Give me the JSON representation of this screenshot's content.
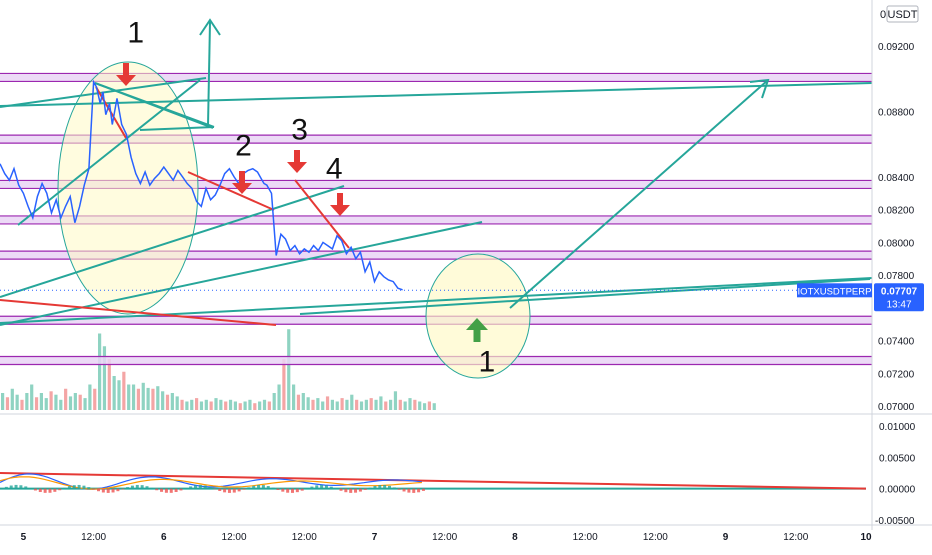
{
  "chart_data": {
    "type": "line",
    "symbol_badge": "IOTXUSDTPERP",
    "currency_label": "USDT",
    "axis_prefix": "0",
    "last_price": "0.07707",
    "countdown": "13:47",
    "price_ticks": [
      "0.09200",
      "0.08800",
      "0.08400",
      "0.08200",
      "0.08000",
      "0.07800",
      "0.07400",
      "0.07200",
      "0.07000"
    ],
    "price_ticks_values": [
      0.092,
      0.088,
      0.084,
      0.082,
      0.08,
      0.078,
      0.074,
      0.072,
      0.07
    ],
    "osc_ticks": [
      "0.01000",
      "0.00500",
      "0.00000",
      "-0.00500"
    ],
    "osc_ticks_values": [
      0.01,
      0.005,
      0.0,
      -0.005
    ],
    "time_ticks": [
      "5",
      "12:00",
      "6",
      "12:00",
      "12:00",
      "7",
      "12:00",
      "8",
      "12:00",
      "12:00",
      "9",
      "12:00",
      "10"
    ],
    "time_ticks_t": [
      0.25,
      1.0,
      1.75,
      2.5,
      3.25,
      4.0,
      4.75,
      5.5,
      6.25,
      7.0,
      7.75,
      8.5,
      9.25
    ],
    "levels": [
      {
        "label": "0.09008",
        "value": 0.09008
      },
      {
        "label": "0.08631",
        "value": 0.08631
      },
      {
        "label": "0.08354",
        "value": 0.08354
      },
      {
        "label": "0.08137",
        "value": 0.08137
      },
      {
        "label": "0.07922",
        "value": 0.07922
      },
      {
        "label": "0.07524",
        "value": 0.07524
      },
      {
        "label": "0.07278",
        "value": 0.07278
      }
    ],
    "price_series": {
      "t": [
        0.0,
        0.05,
        0.1,
        0.15,
        0.2,
        0.25,
        0.3,
        0.35,
        0.4,
        0.45,
        0.5,
        0.55,
        0.6,
        0.65,
        0.7,
        0.75,
        0.8,
        0.85,
        0.9,
        0.95,
        1.0,
        1.03,
        1.07,
        1.1,
        1.13,
        1.17,
        1.2,
        1.25,
        1.3,
        1.35,
        1.4,
        1.45,
        1.5,
        1.55,
        1.6,
        1.65,
        1.7,
        1.75,
        1.8,
        1.85,
        1.9,
        1.95,
        2.0,
        2.05,
        2.1,
        2.15,
        2.2,
        2.25,
        2.3,
        2.35,
        2.4,
        2.45,
        2.5,
        2.55,
        2.6,
        2.65,
        2.7,
        2.75,
        2.8,
        2.82,
        2.85,
        2.9,
        2.95,
        3.0,
        3.05,
        3.1,
        3.15,
        3.2,
        3.25,
        3.3,
        3.35,
        3.4,
        3.45,
        3.5,
        3.55,
        3.6,
        3.65,
        3.7,
        3.75,
        3.8,
        3.85,
        3.9,
        3.95,
        4.0,
        4.05,
        4.1,
        4.15,
        4.2,
        4.25,
        4.3
      ],
      "v": [
        0.0848,
        0.0842,
        0.0838,
        0.0845,
        0.0835,
        0.083,
        0.0822,
        0.0815,
        0.0828,
        0.0836,
        0.083,
        0.0818,
        0.0826,
        0.0815,
        0.0822,
        0.0828,
        0.0812,
        0.0822,
        0.0835,
        0.0845,
        0.0898,
        0.0895,
        0.0885,
        0.0892,
        0.0878,
        0.0885,
        0.0872,
        0.0888,
        0.0872,
        0.0866,
        0.0852,
        0.0842,
        0.0836,
        0.0843,
        0.0835,
        0.0839,
        0.0842,
        0.0846,
        0.0842,
        0.0838,
        0.0844,
        0.084,
        0.0836,
        0.0833,
        0.0825,
        0.0822,
        0.0833,
        0.0826,
        0.0829,
        0.0835,
        0.0842,
        0.0845,
        0.084,
        0.0836,
        0.0842,
        0.0844,
        0.0845,
        0.0843,
        0.0838,
        0.0836,
        0.0835,
        0.083,
        0.0792,
        0.0805,
        0.0802,
        0.0795,
        0.0798,
        0.0793,
        0.0796,
        0.0794,
        0.0798,
        0.0795,
        0.08,
        0.0798,
        0.0796,
        0.0804,
        0.0801,
        0.0793,
        0.0797,
        0.079,
        0.0794,
        0.0782,
        0.0788,
        0.0776,
        0.0782,
        0.0779,
        0.0777,
        0.0776,
        0.0772,
        0.0771
      ]
    },
    "volume": [
      0.2,
      0.15,
      0.25,
      0.18,
      0.12,
      0.2,
      0.3,
      0.15,
      0.2,
      0.14,
      0.22,
      0.18,
      0.12,
      0.25,
      0.16,
      0.2,
      0.18,
      0.14,
      0.3,
      0.25,
      0.9,
      0.75,
      0.6,
      0.4,
      0.35,
      0.45,
      0.3,
      0.3,
      0.25,
      0.32,
      0.26,
      0.25,
      0.28,
      0.22,
      0.18,
      0.2,
      0.16,
      0.12,
      0.1,
      0.12,
      0.14,
      0.1,
      0.12,
      0.1,
      0.14,
      0.12,
      0.1,
      0.12,
      0.1,
      0.08,
      0.1,
      0.12,
      0.08,
      0.1,
      0.12,
      0.1,
      0.2,
      0.3,
      0.6,
      0.95,
      0.3,
      0.18,
      0.2,
      0.15,
      0.12,
      0.14,
      0.1,
      0.16,
      0.12,
      0.1,
      0.14,
      0.12,
      0.18,
      0.12,
      0.1,
      0.12,
      0.14,
      0.12,
      0.16,
      0.1,
      0.12,
      0.22,
      0.12,
      0.1,
      0.14,
      0.12,
      0.1,
      0.08,
      0.1,
      0.08
    ],
    "annotations": [
      {
        "text": "1",
        "t": 1.45,
        "v": 0.0922
      },
      {
        "text": "2",
        "t": 2.6,
        "v": 0.0853
      },
      {
        "text": "3",
        "t": 3.2,
        "v": 0.0863
      },
      {
        "text": "4",
        "t": 3.57,
        "v": 0.0839
      },
      {
        "text": "1",
        "t": 5.2,
        "v": 0.0721
      }
    ]
  }
}
